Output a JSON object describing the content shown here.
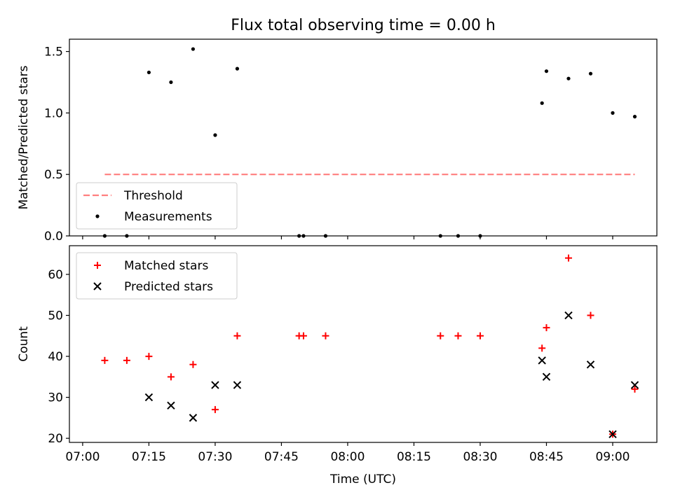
{
  "title": "Flux total observing time = 0.00 h",
  "colors": {
    "threshold": "#ff7f7f",
    "measurements": "#000000",
    "matched": "#ff0000",
    "predicted": "#000000"
  },
  "chart_data": [
    {
      "type": "scatter",
      "title": "Flux total observing time = 0.00 h",
      "xlabel": "",
      "ylabel": "Matched/Predicted stars",
      "xlim": [
        "06:57",
        "09:10"
      ],
      "ylim": [
        0,
        1.6
      ],
      "yticks": [
        "0.0",
        "0.5",
        "1.0",
        "1.5"
      ],
      "ytick_values": [
        0,
        0.5,
        1.0,
        1.5
      ],
      "xtick_values": [
        "07:00",
        "07:15",
        "07:30",
        "07:45",
        "08:00",
        "08:15",
        "08:30",
        "08:45",
        "09:00"
      ],
      "grid": false,
      "legend_position": "lower-left",
      "series": [
        {
          "name": "Threshold",
          "style": "dashed-line",
          "points": [
            [
              "07:05",
              0.5
            ],
            [
              "09:05",
              0.5
            ]
          ]
        },
        {
          "name": "Measurements",
          "style": "dot",
          "points": [
            [
              "07:05",
              0.0
            ],
            [
              "07:10",
              0.0
            ],
            [
              "07:15",
              1.33
            ],
            [
              "07:20",
              1.25
            ],
            [
              "07:25",
              1.52
            ],
            [
              "07:30",
              0.82
            ],
            [
              "07:35",
              1.36
            ],
            [
              "07:49",
              0.0
            ],
            [
              "07:50",
              0.0
            ],
            [
              "07:55",
              0.0
            ],
            [
              "08:21",
              0.0
            ],
            [
              "08:25",
              0.0
            ],
            [
              "08:30",
              0.0
            ],
            [
              "08:44",
              1.08
            ],
            [
              "08:45",
              1.34
            ],
            [
              "08:50",
              1.28
            ],
            [
              "08:55",
              1.32
            ],
            [
              "09:00",
              1.0
            ],
            [
              "09:05",
              0.97
            ]
          ]
        }
      ]
    },
    {
      "type": "scatter",
      "xlabel": "Time (UTC)",
      "ylabel": "Count",
      "xlim": [
        "06:57",
        "09:10"
      ],
      "ylim": [
        19,
        67
      ],
      "yticks": [
        "20",
        "30",
        "40",
        "50",
        "60"
      ],
      "ytick_values": [
        20,
        30,
        40,
        50,
        60
      ],
      "xticks": [
        "07:00",
        "07:15",
        "07:30",
        "07:45",
        "08:00",
        "08:15",
        "08:30",
        "08:45",
        "09:00"
      ],
      "grid": false,
      "legend_position": "upper-left",
      "series": [
        {
          "name": "Matched stars",
          "style": "plus",
          "points": [
            [
              "07:05",
              39
            ],
            [
              "07:10",
              39
            ],
            [
              "07:15",
              40
            ],
            [
              "07:20",
              35
            ],
            [
              "07:25",
              38
            ],
            [
              "07:30",
              27
            ],
            [
              "07:35",
              45
            ],
            [
              "07:49",
              45
            ],
            [
              "07:50",
              45
            ],
            [
              "07:55",
              45
            ],
            [
              "08:21",
              45
            ],
            [
              "08:25",
              45
            ],
            [
              "08:30",
              45
            ],
            [
              "08:44",
              42
            ],
            [
              "08:45",
              47
            ],
            [
              "08:50",
              64
            ],
            [
              "08:55",
              50
            ],
            [
              "09:00",
              21
            ],
            [
              "09:05",
              32
            ]
          ]
        },
        {
          "name": "Predicted stars",
          "style": "x",
          "points": [
            [
              "07:15",
              30
            ],
            [
              "07:20",
              28
            ],
            [
              "07:25",
              25
            ],
            [
              "07:30",
              33
            ],
            [
              "07:35",
              33
            ],
            [
              "08:44",
              39
            ],
            [
              "08:45",
              35
            ],
            [
              "08:50",
              50
            ],
            [
              "08:55",
              38
            ],
            [
              "09:00",
              21
            ],
            [
              "09:05",
              33
            ]
          ]
        }
      ]
    }
  ]
}
